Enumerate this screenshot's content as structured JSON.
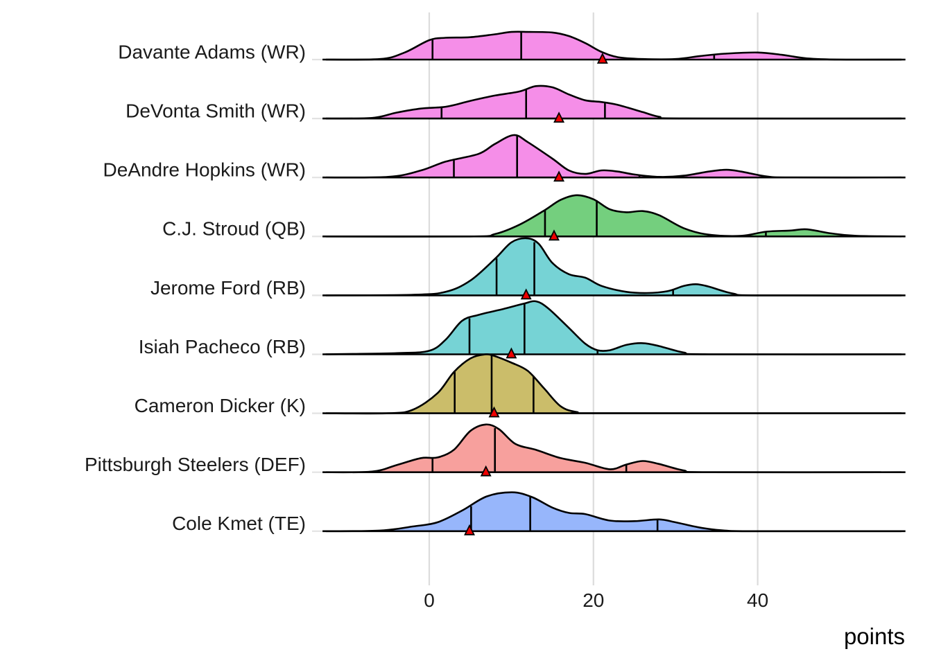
{
  "chart_data": {
    "type": "ridgeline",
    "title": "",
    "xlabel": "points",
    "ylabel": "",
    "xlim": [
      -13,
      58
    ],
    "x_ticks": [
      0,
      20,
      40
    ],
    "x_tick_labels": [
      "0",
      "20",
      "40"
    ],
    "grid": "major vertical and horizontal",
    "legend": "none",
    "marker_description": "vertical lines mark quartiles (25%, 50%, 75%); red triangle marks projected points",
    "colors": {
      "WR": "#F58EE8",
      "QB": "#74CF7E",
      "RB": "#76D3D5",
      "K": "#CBBD6A",
      "DEF": "#F7A09D",
      "TE": "#97B6FB",
      "triangle": "#EE0000"
    },
    "series": [
      {
        "name": "Davante Adams (WR)",
        "position": "WR",
        "quantiles": [
          0.4,
          11.2,
          34.7
        ],
        "marker": 21.1,
        "density": [
          [
            -13,
            0
          ],
          [
            -6,
            0.01
          ],
          [
            -3,
            0.12
          ],
          [
            0,
            0.33
          ],
          [
            2,
            0.37
          ],
          [
            5,
            0.38
          ],
          [
            8,
            0.43
          ],
          [
            10,
            0.47
          ],
          [
            12,
            0.47
          ],
          [
            15,
            0.46
          ],
          [
            17,
            0.4
          ],
          [
            19,
            0.28
          ],
          [
            21,
            0.13
          ],
          [
            23,
            0.04
          ],
          [
            26,
            0.01
          ],
          [
            30,
            0.01
          ],
          [
            33,
            0.06
          ],
          [
            36,
            0.1
          ],
          [
            40,
            0.12
          ],
          [
            43,
            0.08
          ],
          [
            46,
            0.02
          ],
          [
            50,
            0
          ],
          [
            58,
            0
          ]
        ]
      },
      {
        "name": "DeVonta Smith (WR)",
        "position": "WR",
        "quantiles": [
          1.5,
          11.8,
          21.4
        ],
        "marker": 15.8,
        "density": [
          [
            -13,
            0
          ],
          [
            -7,
            0.01
          ],
          [
            -4,
            0.1
          ],
          [
            -1,
            0.17
          ],
          [
            2,
            0.2
          ],
          [
            5,
            0.3
          ],
          [
            8,
            0.39
          ],
          [
            11,
            0.46
          ],
          [
            13,
            0.55
          ],
          [
            15,
            0.53
          ],
          [
            17,
            0.41
          ],
          [
            19,
            0.31
          ],
          [
            21,
            0.28
          ],
          [
            23,
            0.23
          ],
          [
            26,
            0.11
          ],
          [
            28,
            0.03
          ],
          [
            31,
            0
          ],
          [
            58,
            0
          ]
        ]
      },
      {
        "name": "DeAndre Hopkins (WR)",
        "position": "WR",
        "quantiles": [
          3.0,
          10.7,
          25.6
        ],
        "marker": 15.8,
        "density": [
          [
            -13,
            0
          ],
          [
            -5,
            0.01
          ],
          [
            -1,
            0.12
          ],
          [
            2,
            0.27
          ],
          [
            6,
            0.4
          ],
          [
            8,
            0.57
          ],
          [
            10.3,
            0.72
          ],
          [
            12,
            0.6
          ],
          [
            15,
            0.32
          ],
          [
            17,
            0.12
          ],
          [
            19,
            0.06
          ],
          [
            21,
            0.12
          ],
          [
            23,
            0.1
          ],
          [
            25,
            0.05
          ],
          [
            28,
            0.01
          ],
          [
            31,
            0.03
          ],
          [
            34,
            0.1
          ],
          [
            36.2,
            0.13
          ],
          [
            38,
            0.1
          ],
          [
            41,
            0.02
          ],
          [
            44,
            0
          ],
          [
            58,
            0
          ]
        ]
      },
      {
        "name": "C.J. Stroud (QB)",
        "position": "QB",
        "quantiles": [
          14.1,
          20.4,
          41.0
        ],
        "marker": 15.2,
        "density": [
          [
            -13,
            0
          ],
          [
            5,
            0
          ],
          [
            8,
            0.04
          ],
          [
            11,
            0.2
          ],
          [
            14,
            0.44
          ],
          [
            16,
            0.62
          ],
          [
            18,
            0.7
          ],
          [
            20,
            0.63
          ],
          [
            22,
            0.46
          ],
          [
            24,
            0.41
          ],
          [
            26,
            0.43
          ],
          [
            28,
            0.36
          ],
          [
            31,
            0.14
          ],
          [
            34,
            0.03
          ],
          [
            38,
            0.01
          ],
          [
            41,
            0.08
          ],
          [
            44,
            0.1
          ],
          [
            46,
            0.12
          ],
          [
            49,
            0.05
          ],
          [
            52,
            0.01
          ],
          [
            58,
            0
          ]
        ]
      },
      {
        "name": "Jerome Ford (RB)",
        "position": "RB",
        "quantiles": [
          8.2,
          12.8,
          29.7
        ],
        "marker": 11.8,
        "density": [
          [
            -13,
            0
          ],
          [
            -2,
            0.01
          ],
          [
            2,
            0.06
          ],
          [
            5,
            0.25
          ],
          [
            8,
            0.62
          ],
          [
            10,
            0.9
          ],
          [
            11.8,
            0.97
          ],
          [
            13.3,
            0.88
          ],
          [
            15,
            0.55
          ],
          [
            17,
            0.36
          ],
          [
            19,
            0.3
          ],
          [
            21,
            0.16
          ],
          [
            24,
            0.06
          ],
          [
            26.5,
            0.04
          ],
          [
            29,
            0.07
          ],
          [
            31,
            0.16
          ],
          [
            32.5,
            0.19
          ],
          [
            34,
            0.15
          ],
          [
            37,
            0.03
          ],
          [
            40,
            0
          ],
          [
            58,
            0
          ]
        ]
      },
      {
        "name": "Isiah Pacheco (RB)",
        "position": "RB",
        "quantiles": [
          4.9,
          11.6,
          20.5
        ],
        "marker": 10.0,
        "density": [
          [
            -13,
            0
          ],
          [
            -4,
            0.02
          ],
          [
            0,
            0.06
          ],
          [
            2,
            0.25
          ],
          [
            4,
            0.57
          ],
          [
            6,
            0.67
          ],
          [
            9,
            0.77
          ],
          [
            11.5,
            0.86
          ],
          [
            13,
            0.9
          ],
          [
            14.5,
            0.78
          ],
          [
            17,
            0.45
          ],
          [
            19,
            0.18
          ],
          [
            20.5,
            0.07
          ],
          [
            22,
            0.07
          ],
          [
            24,
            0.16
          ],
          [
            26,
            0.19
          ],
          [
            28,
            0.14
          ],
          [
            31,
            0.03
          ],
          [
            34,
            0
          ],
          [
            58,
            0
          ]
        ]
      },
      {
        "name": "Cameron Dicker (K)",
        "position": "K",
        "quantiles": [
          3.1,
          7.6,
          12.7
        ],
        "marker": 7.9,
        "density": [
          [
            -13,
            0
          ],
          [
            -5,
            0
          ],
          [
            -2,
            0.06
          ],
          [
            1,
            0.34
          ],
          [
            3,
            0.7
          ],
          [
            5,
            0.93
          ],
          [
            6.8,
            1.0
          ],
          [
            8,
            0.97
          ],
          [
            10,
            0.86
          ],
          [
            12,
            0.72
          ],
          [
            14,
            0.42
          ],
          [
            16,
            0.12
          ],
          [
            18,
            0.02
          ],
          [
            21,
            0
          ],
          [
            58,
            0
          ]
        ]
      },
      {
        "name": "Pittsburgh Steelers (DEF)",
        "position": "DEF",
        "quantiles": [
          0.4,
          8.0,
          24.0
        ],
        "marker": 6.9,
        "density": [
          [
            -13,
            0
          ],
          [
            -7,
            0.01
          ],
          [
            -4,
            0.12
          ],
          [
            -1,
            0.24
          ],
          [
            1,
            0.25
          ],
          [
            3,
            0.38
          ],
          [
            5,
            0.7
          ],
          [
            6.9,
            0.81
          ],
          [
            8.5,
            0.73
          ],
          [
            10.5,
            0.48
          ],
          [
            13,
            0.38
          ],
          [
            16,
            0.24
          ],
          [
            19,
            0.16
          ],
          [
            22,
            0.05
          ],
          [
            24,
            0.13
          ],
          [
            26,
            0.19
          ],
          [
            28,
            0.14
          ],
          [
            31,
            0.03
          ],
          [
            34,
            0
          ],
          [
            58,
            0
          ]
        ]
      },
      {
        "name": "Cole Kmet (TE)",
        "position": "TE",
        "quantiles": [
          5.1,
          12.3,
          27.8
        ],
        "marker": 4.9,
        "density": [
          [
            -13,
            0
          ],
          [
            -6,
            0.01
          ],
          [
            -2,
            0.08
          ],
          [
            1,
            0.15
          ],
          [
            4,
            0.35
          ],
          [
            7,
            0.59
          ],
          [
            10.1,
            0.66
          ],
          [
            12.5,
            0.58
          ],
          [
            15,
            0.4
          ],
          [
            17,
            0.31
          ],
          [
            19,
            0.29
          ],
          [
            22,
            0.18
          ],
          [
            25,
            0.17
          ],
          [
            28,
            0.2
          ],
          [
            30,
            0.15
          ],
          [
            33,
            0.06
          ],
          [
            36,
            0.01
          ],
          [
            40,
            0
          ],
          [
            58,
            0
          ]
        ]
      }
    ]
  }
}
